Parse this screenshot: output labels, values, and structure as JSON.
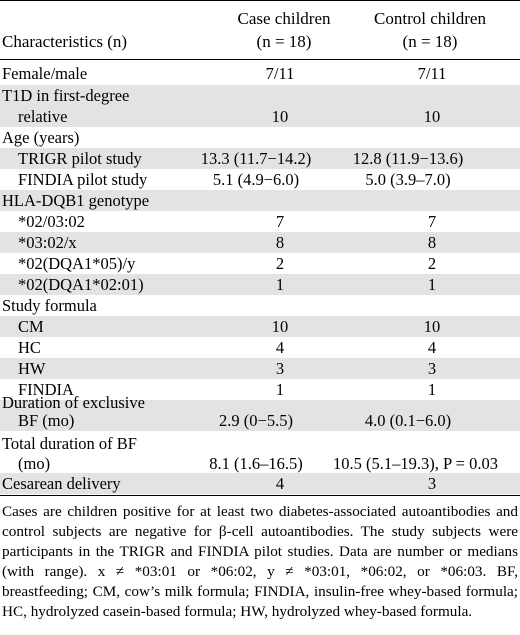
{
  "header": {
    "characteristics": "Characteristics (n)",
    "case_title": "Case children",
    "case_n": "(n = 18)",
    "control_title": "Control children",
    "control_n": "(n = 18)"
  },
  "rows": [
    {
      "label": "Female/male",
      "case": "7/11",
      "control": "7/11"
    },
    {
      "label": "T1D in first-degree",
      "label2": "relative",
      "case": "10",
      "control": "10"
    },
    {
      "label": "Age (years)",
      "case": "",
      "control": ""
    },
    {
      "label": "TRIGR pilot study",
      "case": "13.3 (11.7−14.2)",
      "control": "12.8 (11.9−13.6)"
    },
    {
      "label": "FINDIA pilot study",
      "case": "5.1 (4.9−6.0)",
      "control": "5.0 (3.9–7.0)"
    },
    {
      "label": "HLA-DQB1 genotype",
      "case": "",
      "control": ""
    },
    {
      "label": "*02/03:02",
      "case": "7",
      "control": "7"
    },
    {
      "label": "*03:02/x",
      "case": "8",
      "control": "8"
    },
    {
      "label": "*02(DQA1*05)/y",
      "case": "2",
      "control": "2"
    },
    {
      "label": "*02(DQA1*02:01)",
      "case": "1",
      "control": "1"
    },
    {
      "label": "Study formula",
      "case": "",
      "control": ""
    },
    {
      "label": "CM",
      "case": "10",
      "control": "10"
    },
    {
      "label": "HC",
      "case": "4",
      "control": "4"
    },
    {
      "label": "HW",
      "case": "3",
      "control": "3"
    },
    {
      "label": "FINDIA",
      "case": "1",
      "control": "1"
    },
    {
      "label": "Duration of exclusive",
      "label2": "BF (mo)",
      "case": "2.9 (0−5.5)",
      "control": "4.0 (0.1−6.0)"
    },
    {
      "label": "Total duration of BF",
      "label2": "(mo)",
      "case": "8.1 (1.6–16.5)",
      "control": "10.5 (5.1–19.3), P = 0.03"
    },
    {
      "label": "Cesarean delivery",
      "case": "4",
      "control": "3"
    }
  ],
  "footnote": "Cases are children positive for at least two diabetes-associated autoantibodies and control subjects are negative for β-cell autoantibodies. The study subjects were participants in the TRIGR and FINDIA pilot studies. Data are number or medians (with range). x ≠ *03:01 or *06:02, y ≠ *03:01, *06:02, or *06:03. BF, breastfeeding; CM, cow’s milk formula; FINDIA, insulin-free whey-based formula; HC, hydrolyzed casein-based formula; HW, hydrolyzed whey-based formula."
}
